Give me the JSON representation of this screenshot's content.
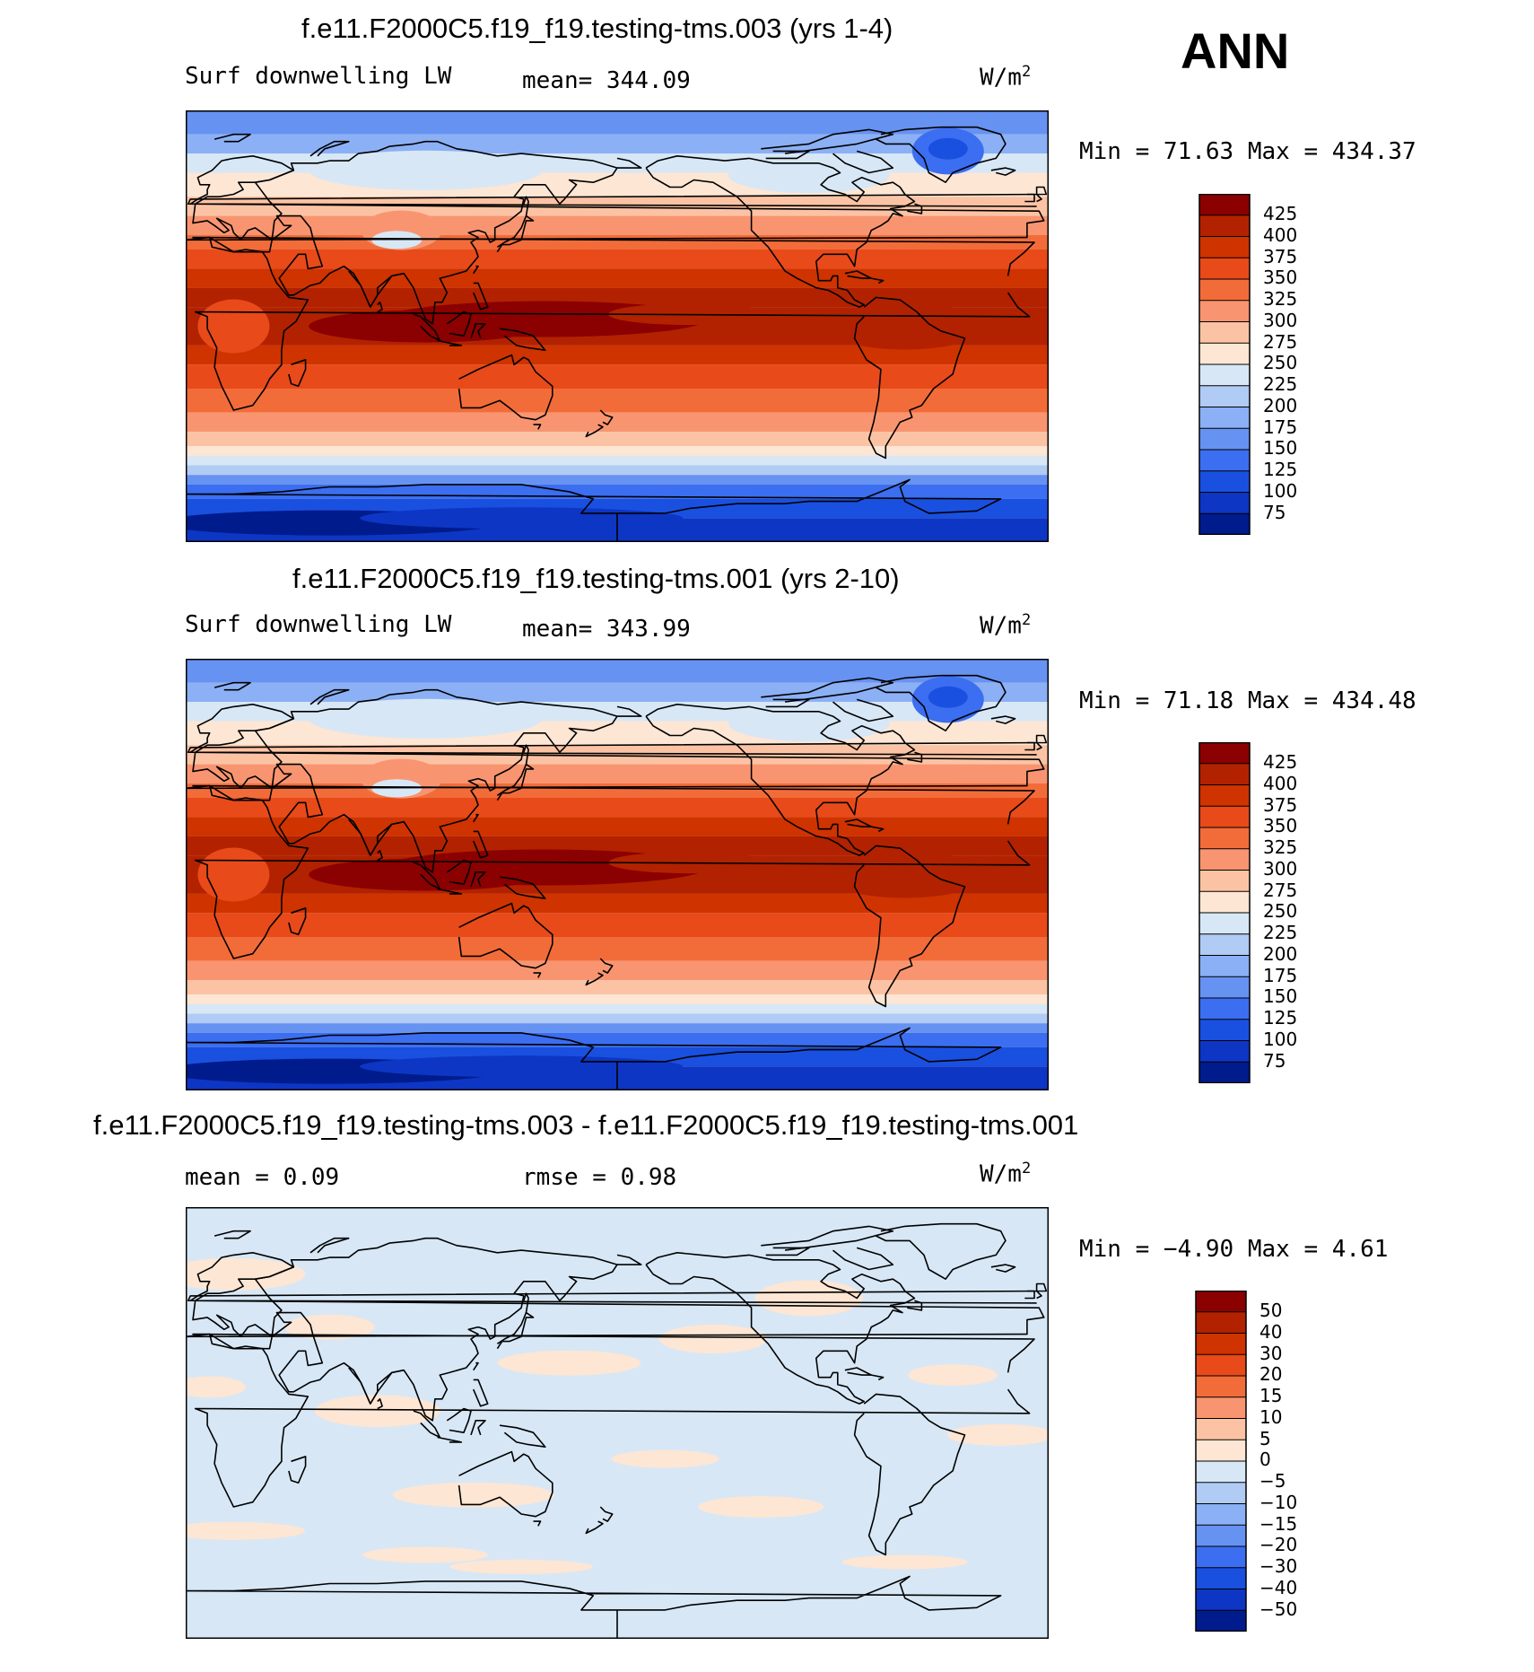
{
  "season": "ANN",
  "panels": [
    {
      "title": "f.e11.F2000C5.f19_f19.testing-tms.003 (yrs 1-4)",
      "left_label": "Surf downwelling LW",
      "center_label": "mean= 344.09",
      "units": "W/m",
      "units_sup": "2",
      "minmax": "Min =   71.63 Max = 434.37",
      "colorbar": {
        "labels": [
          "425",
          "400",
          "375",
          "350",
          "325",
          "300",
          "275",
          "250",
          "225",
          "200",
          "175",
          "150",
          "125",
          "100",
          "75"
        ],
        "colors": [
          "#8b0000",
          "#b22200",
          "#cf3300",
          "#e84a1a",
          "#f26c3a",
          "#f89570",
          "#fbc3a4",
          "#fde6d4",
          "#d7e7f6",
          "#b0cbf4",
          "#8bb0f5",
          "#6692f2",
          "#3b6ef0",
          "#1a50e0",
          "#0d36c4",
          "#001b8c"
        ]
      },
      "map_variant": "field"
    },
    {
      "title": "f.e11.F2000C5.f19_f19.testing-tms.001 (yrs 2-10)",
      "left_label": "Surf downwelling LW",
      "center_label": "mean= 343.99",
      "units": "W/m",
      "units_sup": "2",
      "minmax": "Min =   71.18 Max = 434.48",
      "colorbar": {
        "labels": [
          "425",
          "400",
          "375",
          "350",
          "325",
          "300",
          "275",
          "250",
          "225",
          "200",
          "175",
          "150",
          "125",
          "100",
          "75"
        ],
        "colors": [
          "#8b0000",
          "#b22200",
          "#cf3300",
          "#e84a1a",
          "#f26c3a",
          "#f89570",
          "#fbc3a4",
          "#fde6d4",
          "#d7e7f6",
          "#b0cbf4",
          "#8bb0f5",
          "#6692f2",
          "#3b6ef0",
          "#1a50e0",
          "#0d36c4",
          "#001b8c"
        ]
      },
      "map_variant": "field"
    },
    {
      "title": "f.e11.F2000C5.f19_f19.testing-tms.003 - f.e11.F2000C5.f19_f19.testing-tms.001",
      "left_label": "mean =    0.09",
      "center_label": "rmse =    0.98",
      "units": "W/m",
      "units_sup": "2",
      "minmax": "Min =  −4.90 Max =    4.61",
      "colorbar": {
        "labels": [
          "50",
          "40",
          "30",
          "20",
          "15",
          "10",
          "5",
          "0",
          "−5",
          "−10",
          "−15",
          "−20",
          "−30",
          "−40",
          "−50"
        ],
        "colors": [
          "#8b0000",
          "#b22200",
          "#cf3300",
          "#e84a1a",
          "#f26c3a",
          "#f89570",
          "#fbc3a4",
          "#fde6d4",
          "#d7e7f6",
          "#b0cbf4",
          "#8bb0f5",
          "#6692f2",
          "#3b6ef0",
          "#1a50e0",
          "#0d36c4",
          "#001b8c"
        ]
      },
      "map_variant": "diff"
    }
  ]
}
